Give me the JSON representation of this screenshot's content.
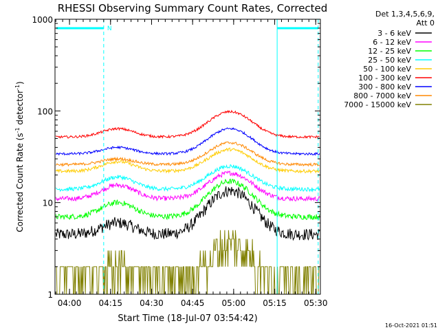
{
  "chart_data": {
    "type": "line",
    "title": "RHESSI Observing Summary Count Rates, Corrected",
    "xlabel": "Start Time (18-Jul-07 03:54:42)",
    "ylabel_main": "Corrected Count Rate (s",
    "ylabel_sup1": "-1",
    "ylabel_mid": " detector",
    "ylabel_sup2": "-1",
    "ylabel_end": ")",
    "yscale": "log",
    "ylim": [
      1,
      1000
    ],
    "xlim_minutes": [
      0,
      97
    ],
    "xtick_labels": [
      "04:00",
      "04:15",
      "04:30",
      "04:45",
      "05:00",
      "05:15",
      "05:30"
    ],
    "xtick_minutes": [
      5.3,
      20.3,
      35.3,
      50.3,
      65.3,
      80.3,
      95.3
    ],
    "ytick_labels": [
      "1",
      "10",
      "100",
      "1000"
    ],
    "ytick_values": [
      1,
      10,
      100,
      1000
    ],
    "legend_header_1": "Det 1,3,4,5,6,9,",
    "legend_header_2": "Att 0",
    "legend_position": "right",
    "markers": {
      "night_label": "N",
      "night_end_minutes": 17.8,
      "night_start_minutes": 81.2,
      "dashed_lines_minutes": [
        17.8,
        96.2
      ],
      "solid_line_minutes": 81.2
    },
    "series": [
      {
        "name": "3 - 6 keV",
        "color": "#000000",
        "base": 4.5,
        "peak1": 6.0,
        "peak2": 13.5,
        "noise": 0.15
      },
      {
        "name": "6 - 12 keV",
        "color": "#ff00ff",
        "base": 11.0,
        "peak1": 15.5,
        "peak2": 21.0,
        "noise": 0.06
      },
      {
        "name": "12 - 25 keV",
        "color": "#00ff00",
        "base": 7.0,
        "peak1": 10.0,
        "peak2": 17.0,
        "noise": 0.07
      },
      {
        "name": "25 - 50 keV",
        "color": "#00ffff",
        "base": 14.0,
        "peak1": 19.0,
        "peak2": 25.0,
        "noise": 0.05
      },
      {
        "name": "50 - 100 keV",
        "color": "#ffcc00",
        "base": 22.0,
        "peak1": 28.0,
        "peak2": 38.0,
        "noise": 0.04
      },
      {
        "name": "100 - 300 keV",
        "color": "#ff0000",
        "base": 52.0,
        "peak1": 64.0,
        "peak2": 98.0,
        "noise": 0.03
      },
      {
        "name": "300 - 800 keV",
        "color": "#0000ff",
        "base": 34.0,
        "peak1": 40.0,
        "peak2": 64.0,
        "noise": 0.03
      },
      {
        "name": "800 - 7000 keV",
        "color": "#ff8800",
        "base": 26.0,
        "peak1": 30.0,
        "peak2": 45.0,
        "noise": 0.035
      },
      {
        "name": "7000 - 15000 keV",
        "color": "#808000",
        "base": 1.0,
        "peak1": 1.8,
        "peak2": 3.5,
        "noise": 0.5
      }
    ],
    "footer_timestamp": "16-Oct-2021 01:51"
  }
}
